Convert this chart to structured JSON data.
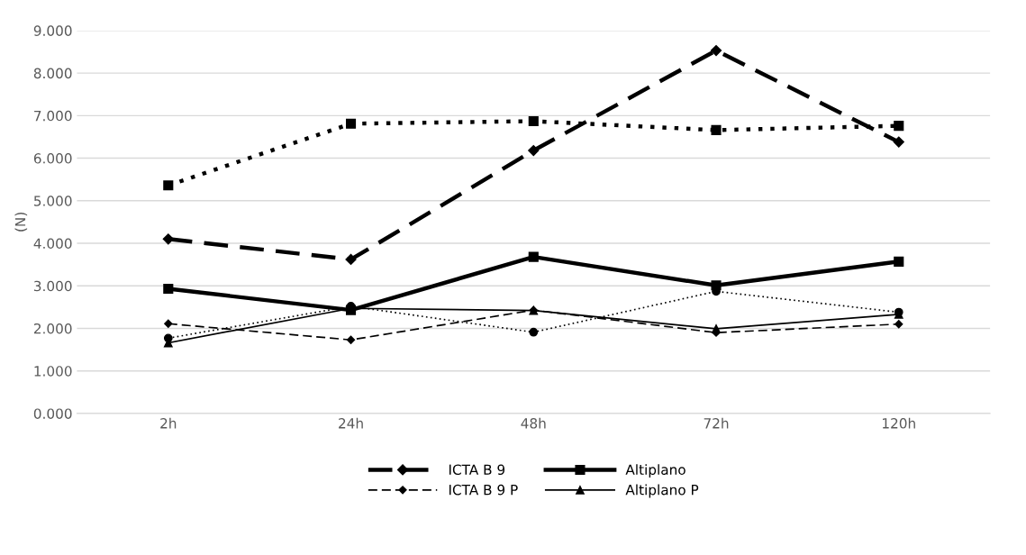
{
  "chart_data": {
    "type": "line",
    "ylabel": "(N)",
    "categories": [
      "2h",
      "24h",
      "48h",
      "72h",
      "120h"
    ],
    "series": [
      {
        "name": "ICTA B 9",
        "color": "#000000",
        "line_style": "dashed",
        "marker": "diamond",
        "values": [
          4.1,
          3.62,
          6.18,
          8.53,
          6.38
        ]
      },
      {
        "name": "Altiplano",
        "color": "#000000",
        "line_style": "solid",
        "marker": "square",
        "values": [
          2.93,
          2.43,
          3.68,
          3.01,
          3.57
        ]
      },
      {
        "color": "#000000",
        "line_style": "dotted",
        "marker": "square",
        "values": [
          5.36,
          6.81,
          6.87,
          6.66,
          6.76
        ]
      },
      {
        "name": "ICTA B 9 P",
        "color": "#000000",
        "line_style": "dashed",
        "marker": "diamond",
        "values": [
          2.11,
          1.73,
          2.43,
          1.9,
          2.1
        ]
      },
      {
        "name": "Altiplano P",
        "color": "#000000",
        "line_style": "solid",
        "marker": "triangle",
        "values": [
          1.66,
          2.47,
          2.42,
          1.99,
          2.33
        ]
      },
      {
        "color": "#000000",
        "line_style": "dotted",
        "marker": "circle",
        "values": [
          1.77,
          2.52,
          1.91,
          2.87,
          2.38
        ]
      }
    ],
    "ylim": [
      0,
      9
    ],
    "yticks": [
      {
        "value": 0,
        "label": "0.000"
      },
      {
        "value": 1,
        "label": "1.000"
      },
      {
        "value": 2,
        "label": "2.000"
      },
      {
        "value": 3,
        "label": "3.000"
      },
      {
        "value": 4,
        "label": "4.000"
      },
      {
        "value": 5,
        "label": "5.000"
      },
      {
        "value": 6,
        "label": "6.000"
      },
      {
        "value": 7,
        "label": "7.000"
      },
      {
        "value": 8,
        "label": "8.000"
      },
      {
        "value": 9,
        "label": "9.000"
      }
    ],
    "grid": "y",
    "legend": "bottom"
  }
}
